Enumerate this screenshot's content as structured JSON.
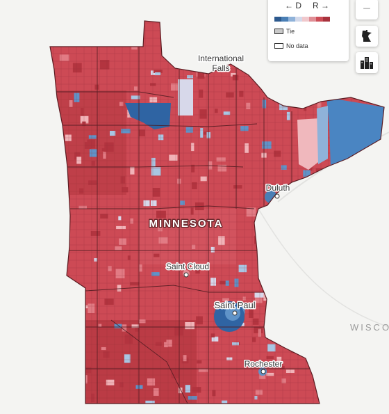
{
  "legend": {
    "dem_label": "← D",
    "rep_label": "R →",
    "scale_colors": [
      "#2d5a8e",
      "#4a7fb5",
      "#8fb2d9",
      "#d3d9ea",
      "#f0c8cc",
      "#e08e95",
      "#cc4d57",
      "#a8323d"
    ],
    "tie_label": "Tie",
    "nodata_label": "No data"
  },
  "controls": {
    "zoom_out_label": "−",
    "state_view_icon": "minnesota-state-icon",
    "city_view_icon": "city-buildings-icon"
  },
  "map": {
    "state_label": "MINNESOTA",
    "neighbor_label": "WISCO",
    "cities": [
      {
        "name": "International",
        "name2": "Falls"
      },
      {
        "name": "Duluth"
      },
      {
        "name": "Saint Cloud"
      },
      {
        "name": "Saint Paul"
      },
      {
        "name": "Rochester"
      }
    ],
    "colors": {
      "rep_base": "#cd4a55",
      "rep_dark": "#b3343f",
      "rep_light": "#e27b84",
      "dem_dark": "#2f64a3",
      "dem_mid": "#5f93c8",
      "dem_light": "#a9c6e3",
      "pink": "#f1b3b8",
      "lavender": "#d7d8ea",
      "background": "#f4f4f2"
    }
  }
}
